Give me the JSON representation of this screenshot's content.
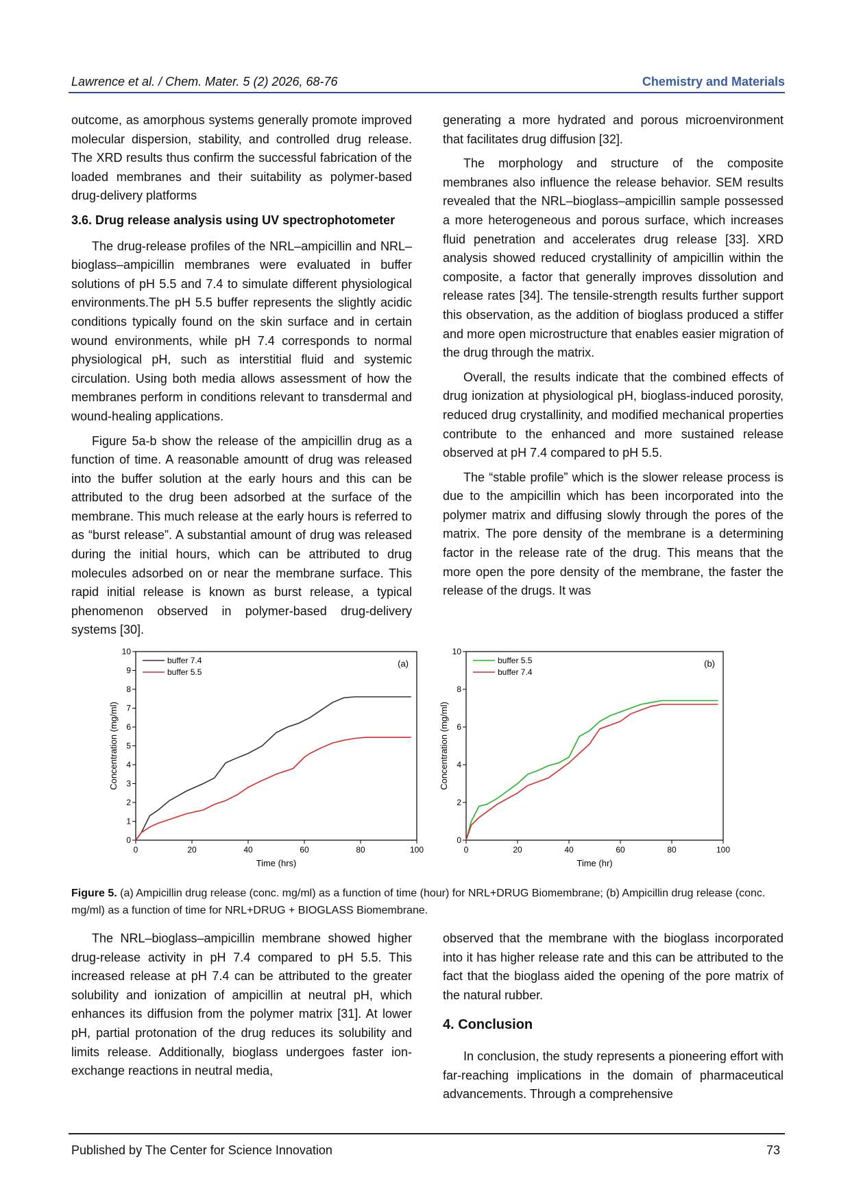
{
  "header": {
    "left": "Lawrence et al. / Chem. Mater. 5 (2) 2026, 68-76",
    "right": "Chemistry and Materials"
  },
  "col1": {
    "p1": "outcome, as amorphous systems generally promote improved molecular dispersion, stability, and controlled drug release. The XRD results thus confirm the successful fabrication of the loaded membranes and their suitability as polymer-based drug-delivery platforms",
    "heading": "3.6. Drug release analysis using UV spectrophotometer",
    "p2": "The drug-release profiles of the NRL–ampicillin and NRL–bioglass–ampicillin membranes were evaluated in buffer solutions of pH 5.5 and 7.4 to simulate different physiological environments.The pH 5.5 buffer represents the slightly acidic conditions typically found on the skin surface and in certain wound environments, while pH 7.4 corresponds to normal physiological pH, such as interstitial fluid and systemic circulation. Using both media allows assessment of how the membranes perform in conditions relevant to transdermal and wound-healing applications.",
    "p3": "Figure 5a-b show the release of the ampicillin drug as a function of time. A reasonable amountt of drug was released into the buffer solution at the early hours and this can be attributed to the drug been adsorbed at the surface of the membrane. This much release at the early hours is referred to as “burst release”. A substantial amount of drug was released during the initial hours, which can be attributed to drug molecules adsorbed on or near the membrane surface. This rapid initial release is known as burst release, a typical phenomenon observed in polymer-based drug-delivery systems [30]."
  },
  "col2": {
    "p1": "generating a more hydrated and porous microenvironment that facilitates drug diffusion [32].",
    "p2": "The morphology and structure of the composite membranes also influence the release behavior. SEM results revealed that the NRL–bioglass–ampicillin sample possessed a more heterogeneous and porous surface, which increases fluid penetration and accelerates drug release [33]. XRD analysis showed reduced crystallinity of ampicillin within the composite, a factor that generally improves dissolution and release rates [34]. The tensile-strength results further support this observation, as the addition of bioglass produced a stiffer and more open microstructure that enables easier migration of the drug through the matrix.",
    "p3": "Overall, the results indicate that the combined effects of drug ionization at physiological pH, bioglass-induced porosity, reduced drug crystallinity, and modified mechanical properties contribute to the enhanced and more sustained release observed at pH 7.4 compared to pH 5.5.",
    "p4": "The “stable profile” which is the slower release process is due to the ampicillin which has been incorporated into the polymer matrix and diffusing slowly through the pores of the matrix. The pore density of the membrane is a determining factor in the release rate of the drug. This means that the more open the pore density of the membrane, the faster the release of the drugs. It was"
  },
  "caption": {
    "label": "Figure 5.",
    "text": " (a) Ampicillin drug release (conc. mg/ml) as a function of time (hour) for NRL+DRUG Biomembrane; (b) Ampicillin drug release (conc. mg/ml) as a function of time for NRL+DRUG + BIOGLASS Biomembrane."
  },
  "col3": {
    "p1": "The NRL–bioglass–ampicillin membrane showed higher drug-release activity in pH 7.4 compared to pH 5.5. This increased release at pH 7.4 can be attributed to the greater solubility and ionization of ampicillin at neutral pH, which enhances its diffusion from the polymer matrix [31]. At lower pH, partial protonation of the drug reduces its solubility and limits release. Additionally, bioglass undergoes faster ion-exchange reactions in neutral media,"
  },
  "col4": {
    "p1": "observed that the membrane with the bioglass incorporated into it has higher release rate and this can be attributed to the fact that the bioglass aided the opening of the pore matrix of the natural rubber.",
    "heading": "4.  Conclusion",
    "p2": "In conclusion, the study represents a pioneering effort with far-reaching implications in the domain of pharmaceutical advancements. Through a comprehensive"
  },
  "footer": {
    "left": "Published by The Center for Science Innovation",
    "right": "73"
  },
  "chart_data": [
    {
      "type": "line",
      "panel_label": "(a)",
      "xlabel": "Time (hrs)",
      "ylabel": "Concentration (mg/ml)",
      "xlim": [
        0,
        100
      ],
      "ylim": [
        0,
        10
      ],
      "xticks": [
        0,
        20,
        40,
        60,
        80,
        100
      ],
      "yticks": [
        0,
        1,
        2,
        3,
        4,
        5,
        6,
        7,
        8,
        9,
        10
      ],
      "grid": false,
      "legend": "top-left",
      "series": [
        {
          "name": "buffer 7.4",
          "color": "#333333",
          "x": [
            0,
            2,
            5,
            8,
            12,
            18,
            24,
            28,
            32,
            35,
            40,
            45,
            50,
            54,
            58,
            62,
            66,
            70,
            74,
            78,
            82,
            90,
            98
          ],
          "y": [
            0,
            0.4,
            1.3,
            1.6,
            2.1,
            2.6,
            3.0,
            3.3,
            4.1,
            4.3,
            4.6,
            5.0,
            5.7,
            6.0,
            6.2,
            6.5,
            6.9,
            7.3,
            7.55,
            7.6,
            7.6,
            7.6,
            7.6
          ]
        },
        {
          "name": "buffer 5.5",
          "color": "#d62d2d",
          "x": [
            0,
            2,
            5,
            8,
            12,
            18,
            24,
            28,
            32,
            36,
            40,
            44,
            50,
            56,
            60,
            62,
            66,
            70,
            74,
            78,
            82,
            90,
            98
          ],
          "y": [
            0,
            0.4,
            0.7,
            0.9,
            1.1,
            1.4,
            1.6,
            1.9,
            2.1,
            2.4,
            2.8,
            3.1,
            3.5,
            3.8,
            4.4,
            4.6,
            4.9,
            5.15,
            5.3,
            5.4,
            5.45,
            5.45,
            5.45
          ]
        }
      ]
    },
    {
      "type": "line",
      "panel_label": "(b)",
      "xlabel": "Time (hr)",
      "ylabel": "Concentration (mg/ml)",
      "xlim": [
        0,
        100
      ],
      "ylim": [
        0,
        10
      ],
      "xticks": [
        0,
        20,
        40,
        60,
        80,
        100
      ],
      "yticks": [
        0,
        2,
        4,
        6,
        8,
        10
      ],
      "grid": false,
      "legend": "top-left",
      "series": [
        {
          "name": "buffer 5.5",
          "color": "#22b422",
          "x": [
            0,
            2,
            5,
            8,
            12,
            16,
            20,
            24,
            28,
            32,
            36,
            40,
            44,
            48,
            52,
            56,
            60,
            64,
            68,
            72,
            76,
            80,
            90,
            98
          ],
          "y": [
            0,
            1.0,
            1.8,
            1.9,
            2.2,
            2.6,
            3.0,
            3.5,
            3.7,
            3.95,
            4.1,
            4.4,
            5.5,
            5.8,
            6.3,
            6.6,
            6.8,
            7.0,
            7.2,
            7.3,
            7.4,
            7.4,
            7.4,
            7.4
          ]
        },
        {
          "name": "buffer 7.4",
          "color": "#d62d2d",
          "x": [
            0,
            2,
            5,
            8,
            12,
            16,
            20,
            24,
            28,
            32,
            36,
            40,
            44,
            48,
            52,
            56,
            60,
            64,
            68,
            72,
            76,
            80,
            90,
            98
          ],
          "y": [
            0,
            0.8,
            1.2,
            1.5,
            1.9,
            2.2,
            2.5,
            2.9,
            3.1,
            3.3,
            3.7,
            4.1,
            4.6,
            5.1,
            5.9,
            6.1,
            6.3,
            6.7,
            6.9,
            7.1,
            7.2,
            7.2,
            7.2,
            7.2
          ]
        }
      ]
    }
  ]
}
